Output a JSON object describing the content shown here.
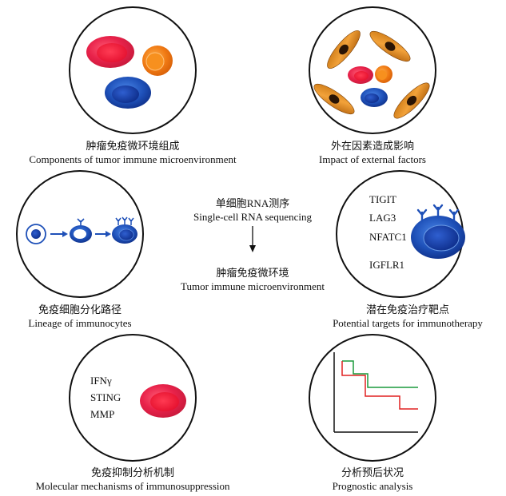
{
  "panels": [
    {
      "zh": "肿瘤免疫微环境组成",
      "en": "Components of tumor immune microenvironment"
    },
    {
      "zh": "外在因素造成影响",
      "en": "Impact of external factors"
    },
    {
      "zh": "免疫细胞分化路径",
      "en": "Lineage of immunocytes"
    },
    {
      "zh": "潜在免疫治疗靶点",
      "en": "Potential targets for immunotherapy"
    },
    {
      "zh": "免疫抑制分析机制",
      "en": "Molecular mechanisms of immunosuppression"
    },
    {
      "zh": "分析预后状况",
      "en": "Prognostic analysis"
    }
  ],
  "center": {
    "top_zh": "单细胞RNA测序",
    "top_en": "Single-cell RNA sequencing",
    "bottom_zh": "肿瘤免疫微环境",
    "bottom_en": "Tumor immune microenvironment"
  },
  "targets": [
    "TIGIT",
    "LAG3",
    "NFATC1",
    "IGFLR1"
  ],
  "mechanisms": [
    "IFNγ",
    "STING",
    "MMP"
  ],
  "colors": {
    "red_cell": "#e8224a",
    "orange_cell": "#f07a14",
    "blue_cell": "#1e50b8",
    "survival_green": "#1a9a3c",
    "survival_red": "#e02020"
  }
}
